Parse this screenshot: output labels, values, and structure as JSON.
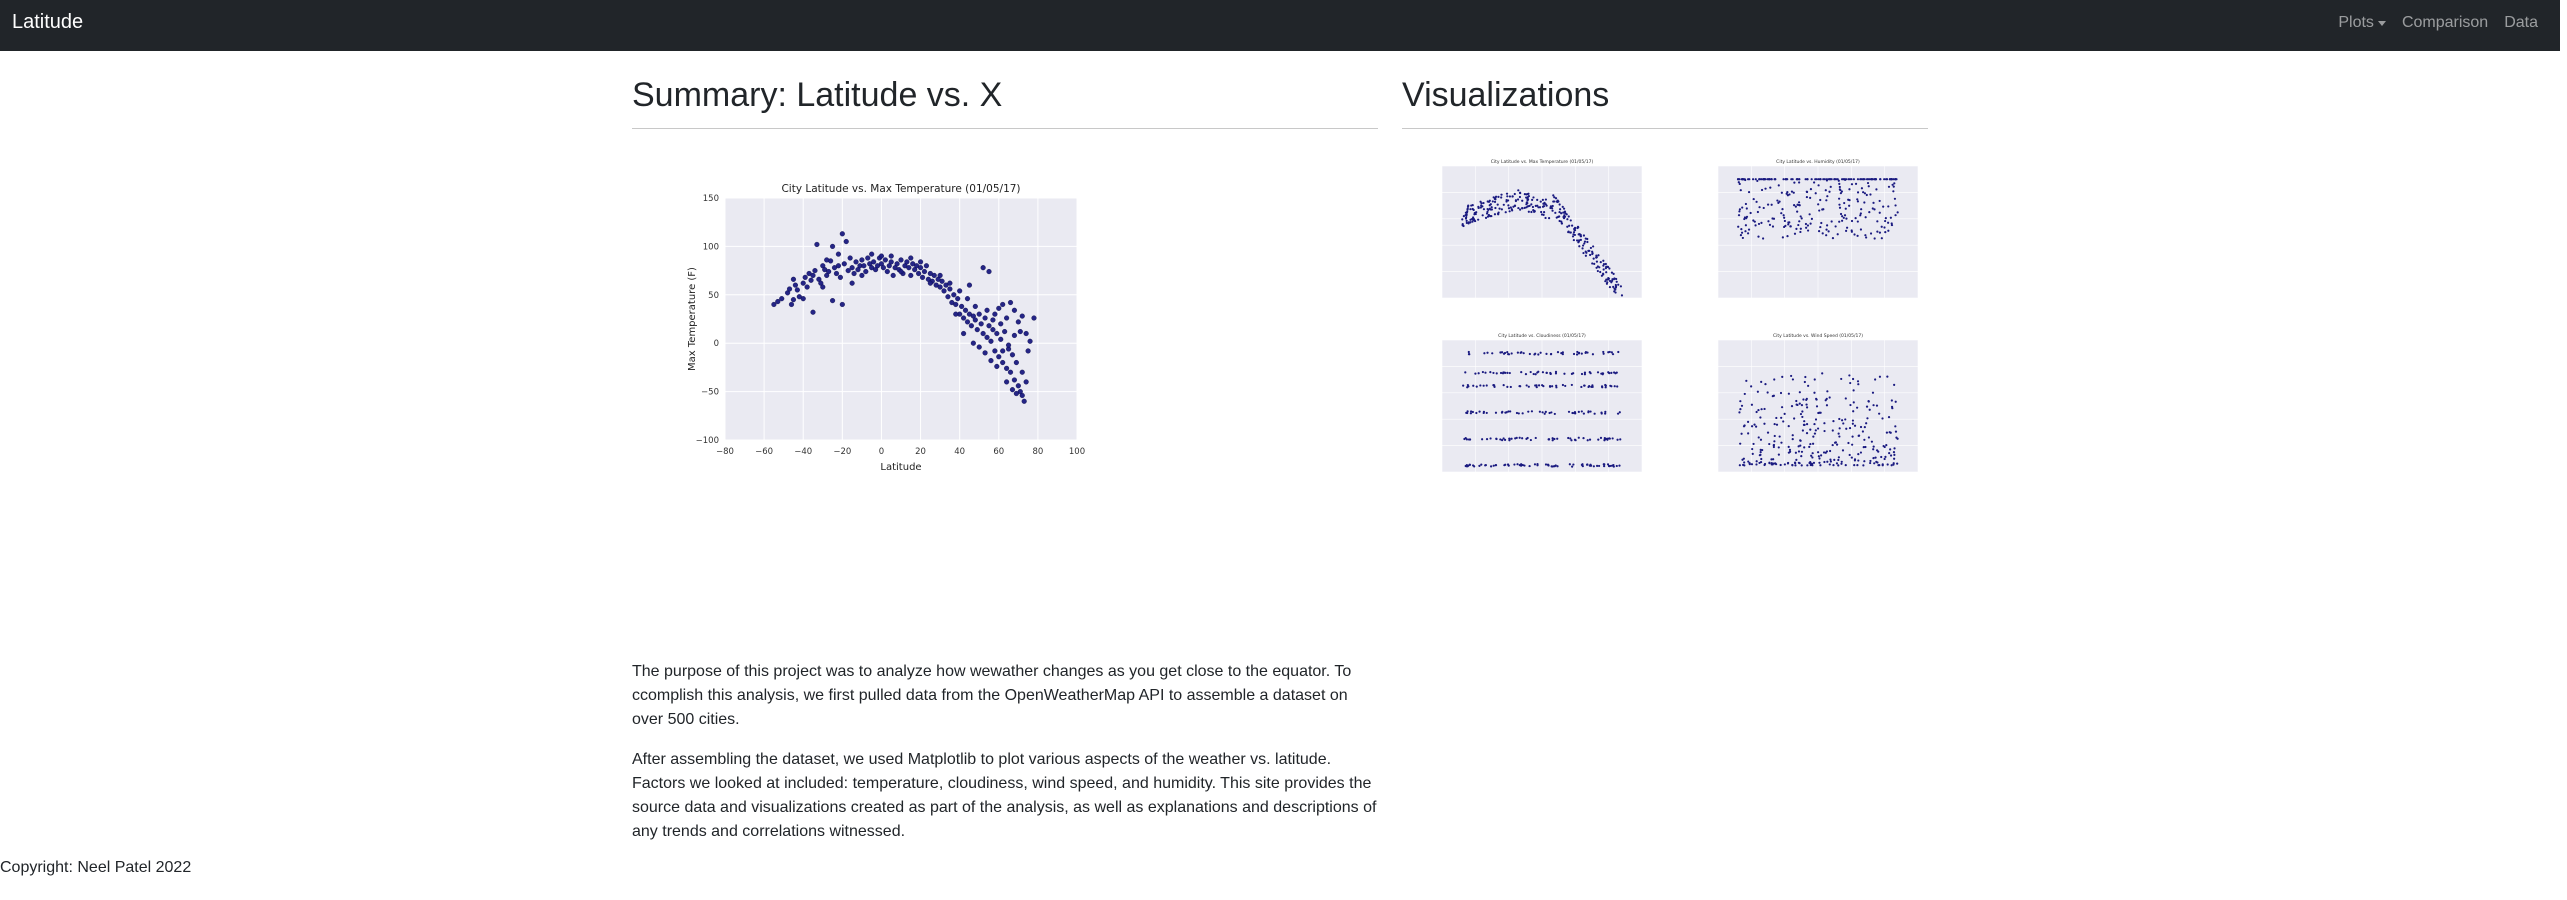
{
  "navbar": {
    "brand": "Latitude",
    "links": [
      {
        "label": "Plots",
        "dropdown": true
      },
      {
        "label": "Comparison",
        "dropdown": false
      },
      {
        "label": "Data",
        "dropdown": false
      }
    ]
  },
  "summary": {
    "heading": "Summary: Latitude vs. X",
    "paragraphs": [
      "The purpose of this project was to analyze how wewather changes as you get close to the equator. To ccomplish this analysis, we first pulled data from the OpenWeatherMap API to assemble a dataset on over 500 cities.",
      "After assembling the dataset, we used Matplotlib to plot various aspects of the weather vs. latitude. Factors we looked at included: temperature, cloudiness, wind speed, and humidity. This site provides the source data and visualizations created as part of the analysis, as well as explanations and descriptions of any trends and correlations witnessed."
    ]
  },
  "visualizations": {
    "heading": "Visualizations",
    "thumbnails": [
      {
        "name": "thumb-max-temperature",
        "title": "City Latitude vs. Max Temperature (01/05/17)"
      },
      {
        "name": "thumb-humidity",
        "title": "City Latitude vs. Humidity (01/05/17)"
      },
      {
        "name": "thumb-cloudiness",
        "title": "City Latitude vs. Cloudiness (01/05/17)"
      },
      {
        "name": "thumb-wind-speed",
        "title": "City Latitude vs. Wind Speed (01/05/17)"
      }
    ]
  },
  "footer": {
    "copyright": "Copyright: Neel Patel 2022"
  },
  "colors": {
    "navbar_bg": "#212529",
    "plot_bg": "#eaeaf2",
    "marker": "#1a1a80"
  },
  "chart_data": {
    "type": "scatter",
    "title": "City Latitude vs. Max Temperature (01/05/17)",
    "xlabel": "Latitude",
    "ylabel": "Max Temperature (F)",
    "xlim": [
      -80,
      100
    ],
    "ylim": [
      -100,
      150
    ],
    "xticks": [
      "−80",
      "−60",
      "−40",
      "−20",
      "0",
      "20",
      "40",
      "60",
      "80",
      "100"
    ],
    "yticks": [
      "−100",
      "−50",
      "0",
      "50",
      "100",
      "150"
    ],
    "grid": true,
    "points": [
      [
        -55,
        40
      ],
      [
        -53,
        43
      ],
      [
        -51,
        46
      ],
      [
        -48,
        52
      ],
      [
        -47,
        56
      ],
      [
        -46,
        40
      ],
      [
        -45,
        45
      ],
      [
        -44,
        60
      ],
      [
        -43,
        55
      ],
      [
        -42,
        48
      ],
      [
        -40,
        62
      ],
      [
        -39,
        68
      ],
      [
        -38,
        58
      ],
      [
        -37,
        72
      ],
      [
        -36,
        65
      ],
      [
        -35,
        70
      ],
      [
        -34,
        75
      ],
      [
        -33,
        102
      ],
      [
        -32,
        66
      ],
      [
        -31,
        62
      ],
      [
        -30,
        80
      ],
      [
        -29,
        76
      ],
      [
        -28,
        70
      ],
      [
        -27,
        74
      ],
      [
        -26,
        85
      ],
      [
        -25,
        100
      ],
      [
        -24,
        78
      ],
      [
        -23,
        72
      ],
      [
        -22,
        80
      ],
      [
        -21,
        68
      ],
      [
        -20,
        113
      ],
      [
        -19,
        82
      ],
      [
        -18,
        105
      ],
      [
        -17,
        75
      ],
      [
        -16,
        88
      ],
      [
        -15,
        78
      ],
      [
        -14,
        72
      ],
      [
        -13,
        84
      ],
      [
        -12,
        76
      ],
      [
        -11,
        80
      ],
      [
        -10,
        86
      ],
      [
        -9,
        80
      ],
      [
        -8,
        74
      ],
      [
        -7,
        88
      ],
      [
        -6,
        82
      ],
      [
        -5,
        78
      ],
      [
        -4,
        84
      ],
      [
        -3,
        76
      ],
      [
        -2,
        80
      ],
      [
        -1,
        88
      ],
      [
        0,
        82
      ],
      [
        1,
        78
      ],
      [
        2,
        86
      ],
      [
        3,
        74
      ],
      [
        4,
        80
      ],
      [
        5,
        84
      ],
      [
        6,
        70
      ],
      [
        7,
        78
      ],
      [
        8,
        82
      ],
      [
        9,
        76
      ],
      [
        10,
        86
      ],
      [
        11,
        72
      ],
      [
        12,
        80
      ],
      [
        13,
        84
      ],
      [
        14,
        78
      ],
      [
        15,
        70
      ],
      [
        16,
        82
      ],
      [
        17,
        76
      ],
      [
        18,
        80
      ],
      [
        19,
        72
      ],
      [
        20,
        78
      ],
      [
        21,
        68
      ],
      [
        22,
        74
      ],
      [
        23,
        80
      ],
      [
        24,
        66
      ],
      [
        25,
        72
      ],
      [
        26,
        64
      ],
      [
        27,
        70
      ],
      [
        28,
        60
      ],
      [
        29,
        66
      ],
      [
        30,
        58
      ],
      [
        31,
        64
      ],
      [
        32,
        54
      ],
      [
        33,
        60
      ],
      [
        34,
        48
      ],
      [
        35,
        56
      ],
      [
        36,
        42
      ],
      [
        37,
        50
      ],
      [
        38,
        40
      ],
      [
        39,
        46
      ],
      [
        40,
        30
      ],
      [
        41,
        38
      ],
      [
        42,
        26
      ],
      [
        43,
        34
      ],
      [
        44,
        22
      ],
      [
        45,
        30
      ],
      [
        46,
        18
      ],
      [
        47,
        28
      ],
      [
        48,
        24
      ],
      [
        49,
        14
      ],
      [
        50,
        30
      ],
      [
        51,
        20
      ],
      [
        52,
        10
      ],
      [
        53,
        26
      ],
      [
        54,
        6
      ],
      [
        55,
        18
      ],
      [
        56,
        2
      ],
      [
        57,
        14
      ],
      [
        58,
        -8
      ],
      [
        59,
        10
      ],
      [
        60,
        -14
      ],
      [
        61,
        4
      ],
      [
        62,
        -20
      ],
      [
        63,
        12
      ],
      [
        64,
        -26
      ],
      [
        65,
        -6
      ],
      [
        66,
        -30
      ],
      [
        67,
        -12
      ],
      [
        68,
        -38
      ],
      [
        69,
        -20
      ],
      [
        70,
        -44
      ],
      [
        71,
        -50
      ],
      [
        72,
        -54
      ],
      [
        73,
        -60
      ],
      [
        74,
        -40
      ],
      [
        75,
        -8
      ],
      [
        76,
        2
      ],
      [
        78,
        26
      ],
      [
        52,
        78
      ],
      [
        55,
        74
      ],
      [
        58,
        30
      ],
      [
        60,
        36
      ],
      [
        62,
        40
      ],
      [
        64,
        26
      ],
      [
        66,
        42
      ],
      [
        68,
        34
      ],
      [
        70,
        22
      ],
      [
        72,
        28
      ],
      [
        74,
        10
      ],
      [
        45,
        60
      ],
      [
        40,
        54
      ],
      [
        35,
        62
      ],
      [
        30,
        70
      ],
      [
        25,
        62
      ],
      [
        20,
        84
      ],
      [
        15,
        88
      ],
      [
        10,
        74
      ],
      [
        5,
        90
      ],
      [
        0,
        90
      ],
      [
        -5,
        92
      ],
      [
        -10,
        70
      ],
      [
        -15,
        62
      ],
      [
        -20,
        40
      ],
      [
        -25,
        44
      ],
      [
        -30,
        58
      ],
      [
        -35,
        32
      ],
      [
        -40,
        46
      ],
      [
        -45,
        66
      ],
      [
        -28,
        86
      ],
      [
        -22,
        92
      ],
      [
        42,
        10
      ],
      [
        47,
        0
      ],
      [
        50,
        -4
      ],
      [
        53,
        -10
      ],
      [
        56,
        -18
      ],
      [
        59,
        -24
      ],
      [
        62,
        -8
      ],
      [
        65,
        -2
      ],
      [
        68,
        8
      ],
      [
        71,
        12
      ],
      [
        38,
        30
      ],
      [
        44,
        46
      ],
      [
        48,
        38
      ],
      [
        54,
        34
      ],
      [
        57,
        24
      ],
      [
        61,
        20
      ],
      [
        64,
        -40
      ],
      [
        67,
        -48
      ],
      [
        69,
        -52
      ],
      [
        72,
        -30
      ]
    ]
  }
}
